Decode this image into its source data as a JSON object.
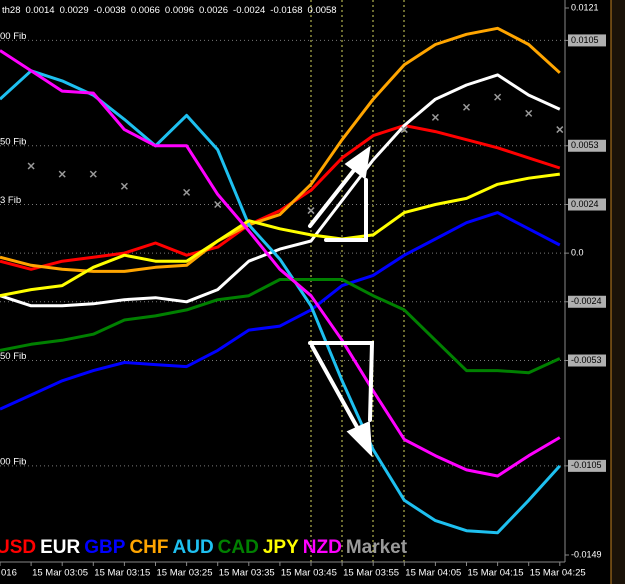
{
  "chart_data": {
    "type": "line",
    "indicator_label": "th28",
    "indicator_values": [
      0.0014,
      0.0029,
      -0.0038,
      0.0066,
      0.0096,
      0.0026,
      -0.0024,
      -0.0168,
      0.0058
    ],
    "categories": [
      "016",
      "15 Mar 03:05",
      null,
      "15 Mar 03:15",
      null,
      "15 Mar 03:25",
      null,
      "15 Mar 03:35",
      null,
      "15 Mar 03:45",
      null,
      "15 Mar 03:55",
      null,
      "15 Mar 04:05",
      null,
      "15 Mar 04:15",
      null,
      "15 Mar 04:25",
      null
    ],
    "ylim": [
      -0.0149,
      0.0121
    ],
    "yticks": [
      -0.0149,
      -0.0105,
      -0.0053,
      -0.0024,
      {
        "value": 0,
        "label": "0.0"
      },
      0.0024,
      0.0053,
      0.0105,
      0.0121
    ],
    "grid": true,
    "annotations": [
      {
        "text": "00 Fib",
        "y": 0.0105
      },
      {
        "text": "50 Fib",
        "y": 0.0053
      },
      {
        "text": "3 Fib",
        "y": 0.0024
      },
      {
        "text": "50 Fib",
        "y": -0.0053
      },
      {
        "text": "00 Fib",
        "y": -0.0105
      }
    ],
    "series": [
      {
        "name": "USD",
        "color": "#ff0000",
        "values": [
          -0.0004,
          -0.0008,
          -0.0004,
          -0.0002,
          0.0,
          0.0005,
          -0.0001,
          0.0003,
          0.0014,
          0.0021,
          0.0031,
          0.0047,
          0.0058,
          0.0063,
          0.006,
          0.0056,
          0.0052,
          0.0047,
          0.0042
        ]
      },
      {
        "name": "EUR",
        "color": "#ffffff",
        "values": [
          -0.0021,
          -0.0026,
          -0.0026,
          -0.0025,
          -0.0023,
          -0.0022,
          -0.0024,
          -0.0018,
          -0.0004,
          0.0002,
          0.0006,
          0.0026,
          0.0046,
          0.0063,
          0.0076,
          0.0083,
          0.0088,
          0.0078,
          0.0071
        ]
      },
      {
        "name": "GBP",
        "color": "#0000ff",
        "values": [
          -0.0077,
          -0.007,
          -0.0063,
          -0.0058,
          -0.0054,
          -0.0055,
          -0.0056,
          -0.0048,
          -0.0038,
          -0.0036,
          -0.0028,
          -0.0016,
          -0.0011,
          -0.0001,
          0.0007,
          0.0015,
          0.002,
          0.0012,
          0.0004
        ]
      },
      {
        "name": "CHF",
        "color": "#ffa500",
        "values": [
          -0.0002,
          -0.0006,
          -0.0008,
          -0.0009,
          -0.0009,
          -0.0007,
          -0.0006,
          0.0006,
          0.0014,
          0.0019,
          0.0034,
          0.0056,
          0.0076,
          0.0093,
          0.0103,
          0.0108,
          0.0111,
          0.0103,
          0.0089
        ]
      },
      {
        "name": "AUD",
        "color": "#1ec0f0",
        "values": [
          0.0076,
          0.009,
          0.0085,
          0.0078,
          0.0066,
          0.0053,
          0.0068,
          0.0051,
          0.0014,
          -0.0003,
          -0.0026,
          -0.0063,
          -0.0097,
          -0.0122,
          -0.0132,
          -0.0137,
          -0.0138,
          -0.0122,
          -0.0105
        ]
      },
      {
        "name": "CAD",
        "color": "#008000",
        "values": [
          -0.0048,
          -0.0045,
          -0.0043,
          -0.004,
          -0.0033,
          -0.0031,
          -0.0028,
          -0.0023,
          -0.0021,
          -0.0013,
          -0.0013,
          -0.0013,
          -0.0021,
          -0.0028,
          -0.0043,
          -0.0058,
          -0.0058,
          -0.0059,
          -0.0052
        ]
      },
      {
        "name": "JPY",
        "color": "#ffff00",
        "values": [
          -0.0021,
          -0.0018,
          -0.0016,
          -0.0007,
          -0.0001,
          -0.0004,
          -0.0004,
          0.0006,
          0.0016,
          0.0012,
          0.0009,
          0.0007,
          0.0009,
          0.002,
          0.0024,
          0.0027,
          0.0034,
          0.0037,
          0.0039
        ]
      },
      {
        "name": "NZD",
        "color": "#ff00ff",
        "values": [
          0.01,
          0.009,
          0.008,
          0.0079,
          0.0061,
          0.0053,
          0.0053,
          0.0029,
          0.0011,
          -0.0008,
          -0.0021,
          -0.0043,
          -0.0068,
          -0.0092,
          -0.01,
          -0.0107,
          -0.011,
          -0.01,
          -0.0091
        ]
      },
      {
        "name": "Market",
        "color": "#9a9a9a",
        "marker": "cross",
        "values": [
          null,
          0.0043,
          0.0039,
          0.0039,
          0.0033,
          null,
          0.003,
          0.0024,
          null,
          null,
          0.0021,
          null,
          null,
          0.0061,
          0.0067,
          0.0072,
          0.0077,
          0.0069,
          0.0061
        ]
      }
    ]
  }
}
